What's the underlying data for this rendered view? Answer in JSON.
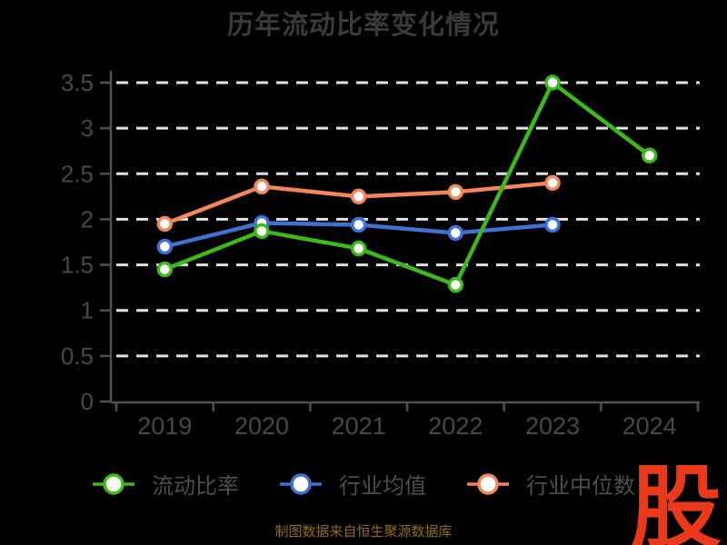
{
  "title": "历年流动比率变化情况",
  "source_note": "制图数据来自恒生聚源数据库",
  "logo": {
    "text": "股",
    "color": "#e8391b"
  },
  "colors": {
    "background": "#000000",
    "title": "#3a3a3c",
    "axis": "#505053",
    "tick_label": "#48484b",
    "gridline": "#e2e2e2",
    "legend_label": "#4e4e52",
    "source_text": "#8d6f1f",
    "logo": "#e8391b",
    "marker_fill": "#ffffff"
  },
  "chart_data": {
    "type": "line",
    "title": "历年流动比率变化情况",
    "categories": [
      "2019",
      "2020",
      "2021",
      "2022",
      "2023",
      "2024"
    ],
    "series": [
      {
        "name": "流动比率",
        "color": "#3eb81c",
        "values": [
          1.45,
          1.87,
          1.68,
          1.28,
          3.5,
          2.7
        ]
      },
      {
        "name": "行业均值",
        "color": "#3f70d2",
        "values": [
          1.7,
          1.96,
          1.94,
          1.85,
          1.94,
          null
        ]
      },
      {
        "name": "行业中位数",
        "color": "#f2865c",
        "values": [
          1.95,
          2.36,
          2.25,
          2.3,
          2.4,
          null
        ]
      }
    ],
    "ylim": [
      0,
      3.5
    ],
    "ytick_step": 0.5,
    "yticks": [
      "0",
      "0.5",
      "1",
      "1.5",
      "2",
      "2.5",
      "3",
      "3.5"
    ],
    "grid": "horizontal-dashed",
    "legend_position": "bottom",
    "marker": "circle-white-fill"
  }
}
